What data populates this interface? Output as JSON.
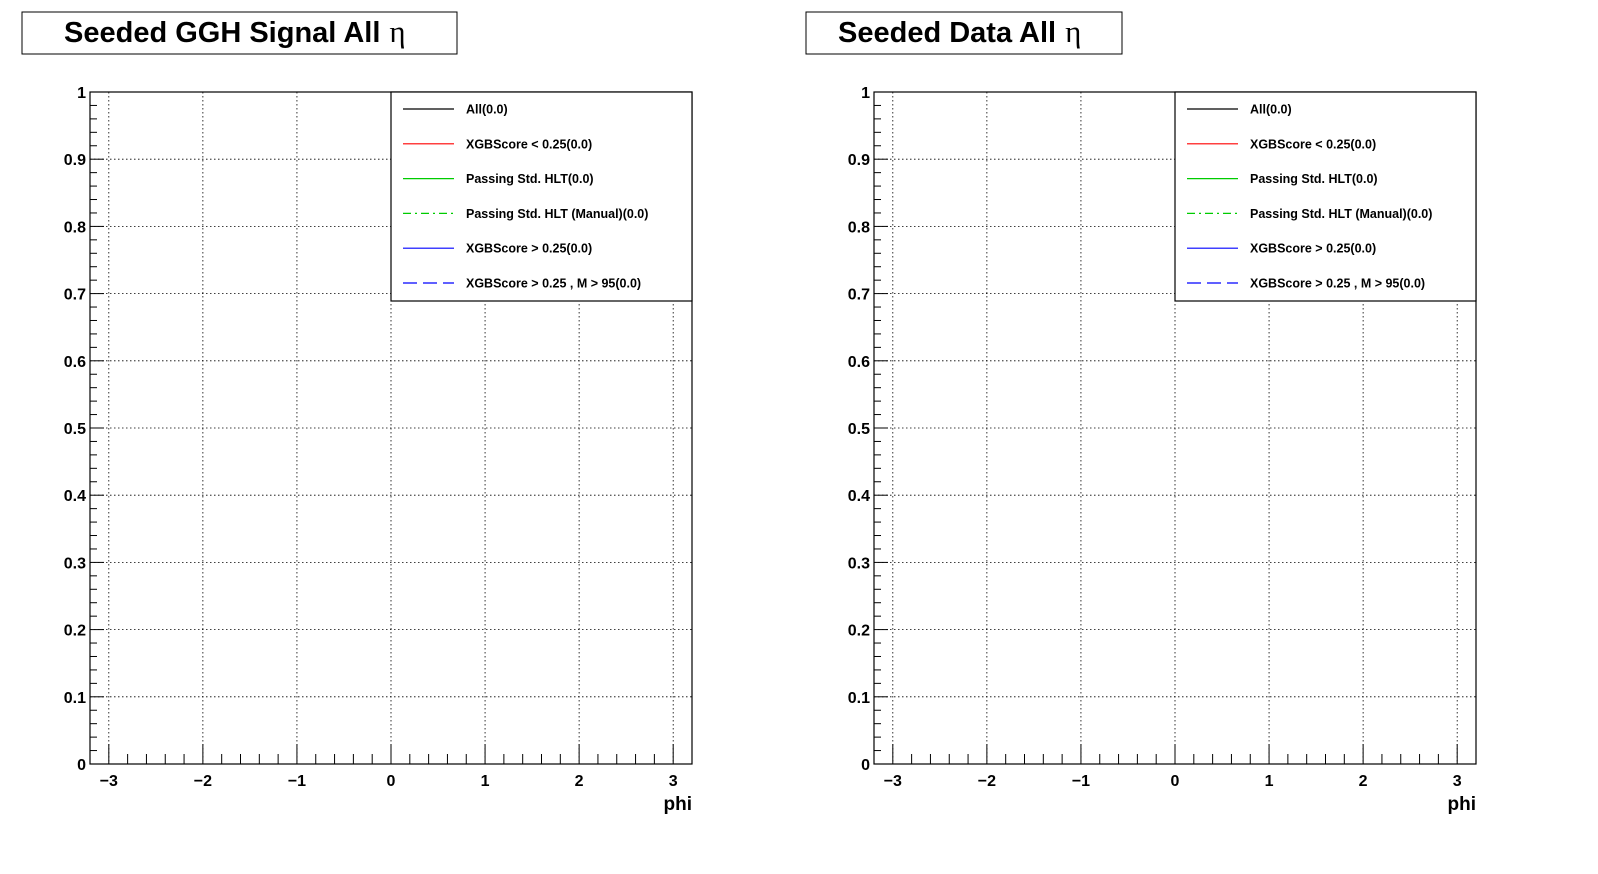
{
  "chart_data": [
    {
      "type": "line",
      "title": "Seeded GGH Signal All",
      "title_symbol": "η",
      "xlabel": "phi",
      "ylabel": "",
      "xlim": [
        -3.2,
        3.2
      ],
      "ylim": [
        0,
        1
      ],
      "xticks": [
        -3,
        -2,
        -1,
        0,
        1,
        2,
        3
      ],
      "xtick_labels": [
        "−3",
        "−2",
        "−1",
        "0",
        "1",
        "2",
        "3"
      ],
      "yticks": [
        0,
        0.1,
        0.2,
        0.3,
        0.4,
        0.5,
        0.6,
        0.7,
        0.8,
        0.9,
        1
      ],
      "ytick_labels": [
        "0",
        "0.1",
        "0.2",
        "0.3",
        "0.4",
        "0.5",
        "0.6",
        "0.7",
        "0.8",
        "0.9",
        "1"
      ],
      "grid": true,
      "legend_position": "top-right",
      "series": [
        {
          "name": "All(0.0)",
          "color": "#000000",
          "dash": "solid",
          "values": []
        },
        {
          "name": "XGBScore < 0.25(0.0)",
          "color": "#ff0000",
          "dash": "solid",
          "values": []
        },
        {
          "name": "Passing Std. HLT(0.0)",
          "color": "#00cc00",
          "dash": "solid",
          "values": []
        },
        {
          "name": "Passing Std. HLT (Manual)(0.0)",
          "color": "#00cc00",
          "dash": "dashdot",
          "values": []
        },
        {
          "name": "XGBScore > 0.25(0.0)",
          "color": "#0000ff",
          "dash": "solid",
          "values": []
        },
        {
          "name": "XGBScore > 0.25 , M > 95(0.0)",
          "color": "#0000ff",
          "dash": "dashed",
          "values": []
        }
      ]
    },
    {
      "type": "line",
      "title": "Seeded Data All",
      "title_symbol": "η",
      "xlabel": "phi",
      "ylabel": "",
      "xlim": [
        -3.2,
        3.2
      ],
      "ylim": [
        0,
        1
      ],
      "xticks": [
        -3,
        -2,
        -1,
        0,
        1,
        2,
        3
      ],
      "xtick_labels": [
        "−3",
        "−2",
        "−1",
        "0",
        "1",
        "2",
        "3"
      ],
      "yticks": [
        0,
        0.1,
        0.2,
        0.3,
        0.4,
        0.5,
        0.6,
        0.7,
        0.8,
        0.9,
        1
      ],
      "ytick_labels": [
        "0",
        "0.1",
        "0.2",
        "0.3",
        "0.4",
        "0.5",
        "0.6",
        "0.7",
        "0.8",
        "0.9",
        "1"
      ],
      "grid": true,
      "legend_position": "top-right",
      "series": [
        {
          "name": "All(0.0)",
          "color": "#000000",
          "dash": "solid",
          "values": []
        },
        {
          "name": "XGBScore < 0.25(0.0)",
          "color": "#ff0000",
          "dash": "solid",
          "values": []
        },
        {
          "name": "Passing Std. HLT(0.0)",
          "color": "#00cc00",
          "dash": "solid",
          "values": []
        },
        {
          "name": "Passing Std. HLT (Manual)(0.0)",
          "color": "#00cc00",
          "dash": "dashdot",
          "values": []
        },
        {
          "name": "XGBScore > 0.25(0.0)",
          "color": "#0000ff",
          "dash": "solid",
          "values": []
        },
        {
          "name": "XGBScore > 0.25 , M > 95(0.0)",
          "color": "#0000ff",
          "dash": "dashed",
          "values": []
        }
      ]
    }
  ]
}
